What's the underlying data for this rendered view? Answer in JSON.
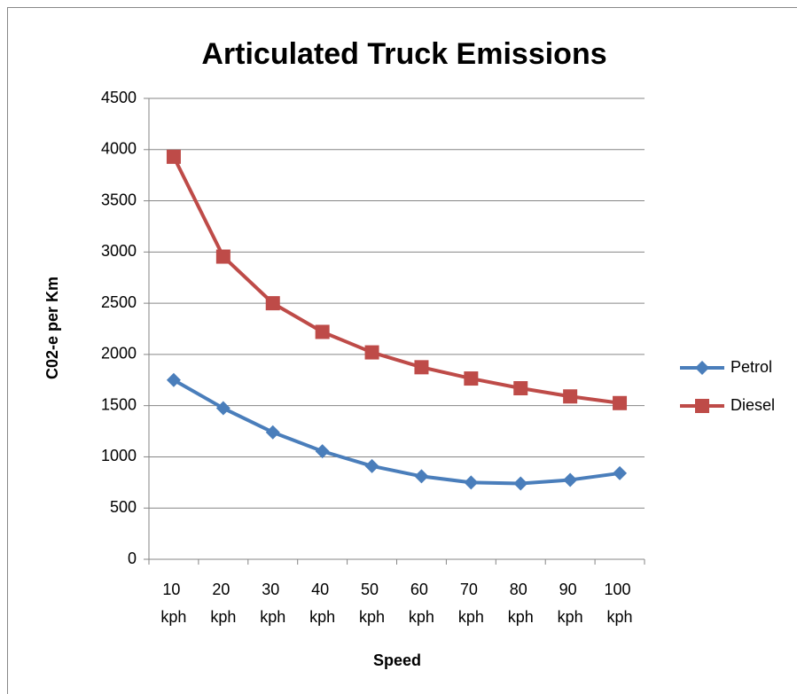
{
  "chart_data": {
    "type": "line",
    "title": "Articulated Truck Emissions",
    "x_label": "Speed",
    "y_label": "C02-e per Km",
    "categories": [
      "10 kph",
      "20 kph",
      "30 kph",
      "40 kph",
      "50 kph",
      "60 kph",
      "70 kph",
      "80 kph",
      "90 kph",
      "100 kph"
    ],
    "series": [
      {
        "name": "Petrol",
        "color": "#4a7ebb",
        "marker": "diamond",
        "values": [
          1750,
          1475,
          1240,
          1055,
          910,
          810,
          750,
          740,
          775,
          840
        ]
      },
      {
        "name": "Diesel",
        "color": "#be4b48",
        "marker": "square",
        "values": [
          3930,
          2955,
          2500,
          2220,
          2020,
          1875,
          1765,
          1670,
          1590,
          1525
        ]
      }
    ],
    "ylim": [
      0,
      4500
    ],
    "yticks": [
      0,
      500,
      1000,
      1500,
      2000,
      2500,
      3000,
      3500,
      4000,
      4500
    ],
    "grid": true,
    "legend": "right"
  }
}
